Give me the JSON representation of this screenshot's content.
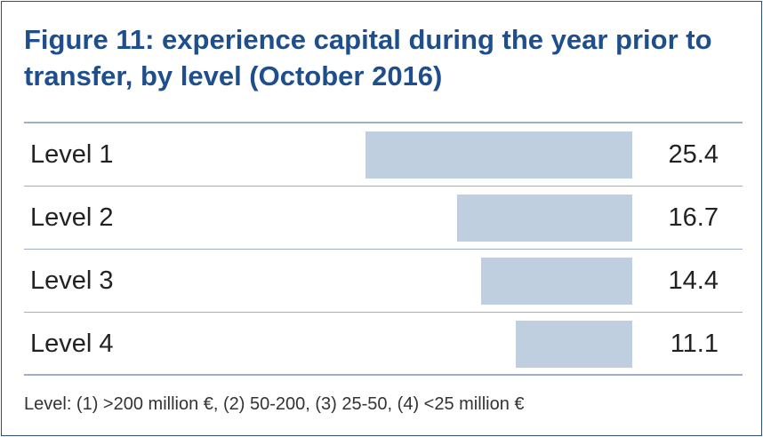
{
  "title": "Figure 11: experience capital during the year prior to transfer, by level (October 2016)",
  "footnote": "Level: (1) >200 million €, (2) 50-200, (3) 25-50, (4) <25 million €",
  "colors": {
    "bar": "#bfcfe0",
    "title": "#1f4e8c"
  },
  "chart_data": {
    "type": "bar",
    "orientation": "horizontal",
    "title": "Figure 11: experience capital during the year prior to transfer, by level (October 2016)",
    "categories": [
      "Level 1",
      "Level 2",
      "Level 3",
      "Level 4"
    ],
    "values": [
      25.4,
      16.7,
      14.4,
      11.1
    ],
    "value_labels": [
      "25.4",
      "16.7",
      "14.4",
      "11.1"
    ],
    "xlim": [
      0,
      25.4
    ],
    "bar_alignment": "right",
    "grid": false,
    "legend": "none"
  }
}
